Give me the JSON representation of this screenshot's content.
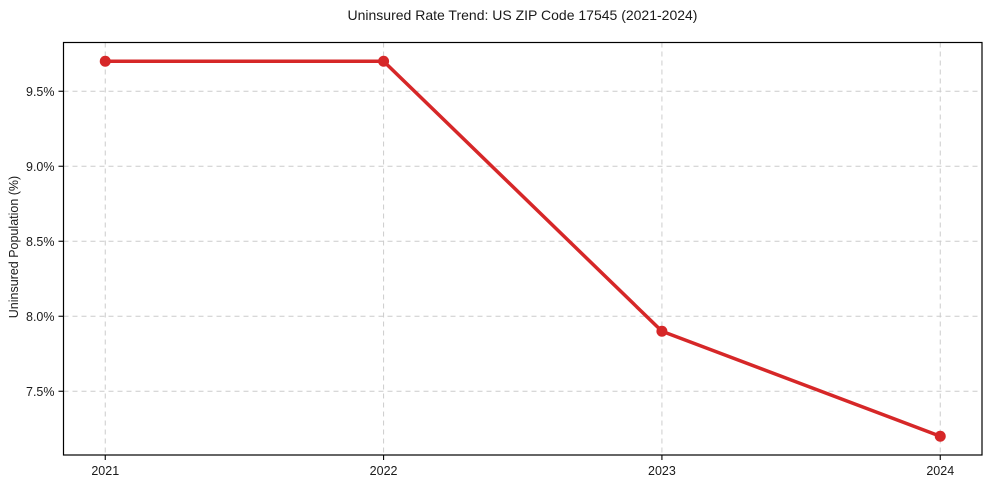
{
  "chart_data": {
    "type": "line",
    "title": "Uninsured Rate Trend: US ZIP Code 17545 (2021-2024)",
    "xlabel": "",
    "ylabel": "Uninsured Population (%)",
    "categories": [
      "2021",
      "2022",
      "2023",
      "2024"
    ],
    "x": [
      2021,
      2022,
      2023,
      2024
    ],
    "series": [
      {
        "name": "Uninsured Population (%)",
        "values": [
          9.7,
          9.7,
          7.9,
          7.2
        ]
      }
    ],
    "y_ticks": [
      7.5,
      8.0,
      8.5,
      9.0,
      9.5
    ],
    "y_tick_labels": [
      "7.5%",
      "8.0%",
      "8.5%",
      "9.0%",
      "9.5%"
    ],
    "xlim": [
      2020.85,
      2024.15
    ],
    "ylim": [
      7.075,
      9.825
    ],
    "grid": true,
    "legend": "none",
    "colors": {
      "line": "#d62728",
      "marker": "#d62728",
      "grid": "#cccccc",
      "spine": "#000000",
      "background": "#ffffff"
    }
  }
}
